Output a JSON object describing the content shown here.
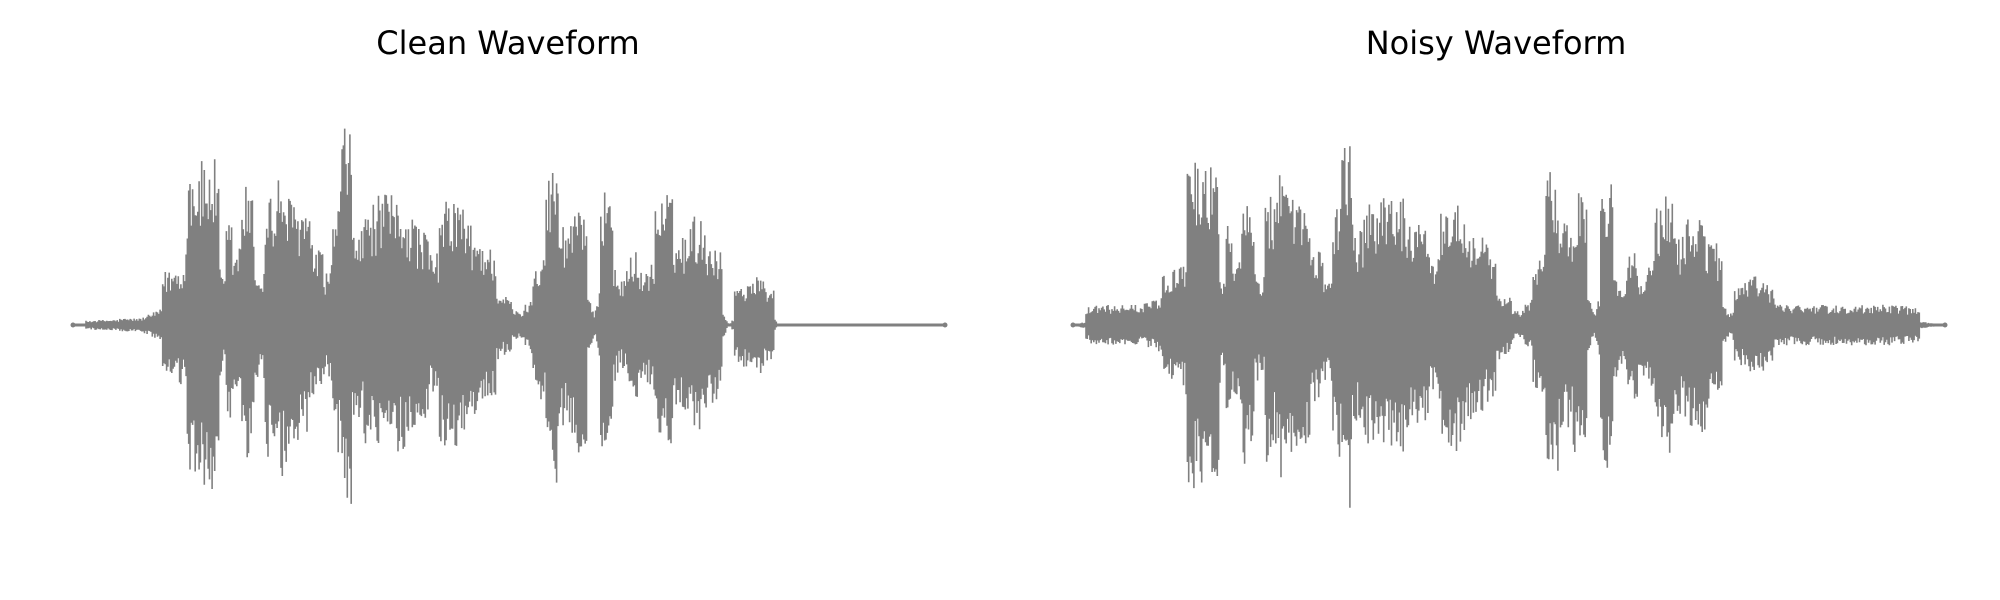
{
  "chart_data": [
    {
      "type": "line",
      "title": "Clean Waveform",
      "axes_visible": false,
      "grid": false,
      "legend": "none",
      "color": "#808080",
      "xlim": [
        0,
        1
      ],
      "ylim": [
        -1,
        1
      ],
      "series": [
        {
          "x": [
            0.0,
            0.0275,
            0.0775,
            0.1275,
            0.1325,
            0.1425,
            0.1525,
            0.1625,
            0.1725,
            0.1775,
            0.1875,
            0.1975,
            0.2175,
            0.2225,
            0.2325,
            0.2375,
            0.2525,
            0.2625,
            0.2825,
            0.2925,
            0.3025,
            0.3125,
            0.3275,
            0.3375,
            0.3575,
            0.3775,
            0.3875,
            0.4025,
            0.4125,
            0.4275,
            0.4425,
            0.4525,
            0.4625,
            0.4775,
            0.4925,
            0.5125,
            0.5225,
            0.5325,
            0.5525,
            0.5625,
            0.5825,
            0.5975,
            0.6125,
            0.6275,
            0.6425,
            0.6525,
            0.6825,
            0.6925,
            0.7125,
            0.7375,
            0.7525,
            0.7625,
            0.7825,
            0.8025,
            0.8075,
            0.8375,
            0.9425,
            1.0
          ],
          "y": [
            0.0,
            0.03,
            0.04,
            0.37,
            0.97,
            0.96,
            0.97,
            0.98,
            0.25,
            0.63,
            0.44,
            0.84,
            0.27,
            0.82,
            0.71,
            0.9,
            0.74,
            0.72,
            0.44,
            0.31,
            0.74,
            1.2,
            0.55,
            0.71,
            0.77,
            0.75,
            0.66,
            0.58,
            0.4,
            0.73,
            0.76,
            0.61,
            0.53,
            0.47,
            0.18,
            0.08,
            0.13,
            0.4,
            0.96,
            0.6,
            0.8,
            0.06,
            0.93,
            0.25,
            0.45,
            0.31,
            0.79,
            0.52,
            0.65,
            0.49,
            0.0,
            0.24,
            0.29,
            0.23,
            0.01,
            0.0,
            0.0,
            0.0
          ]
        }
      ]
    },
    {
      "type": "line",
      "title": "Noisy Waveform",
      "axes_visible": false,
      "grid": false,
      "legend": "none",
      "color": "#808080",
      "xlim": [
        0,
        1
      ],
      "ylim": [
        -1,
        1
      ],
      "series": [
        {
          "x": [
            0.0,
            0.0275,
            0.0775,
            0.1275,
            0.1325,
            0.1425,
            0.1525,
            0.1625,
            0.1725,
            0.1775,
            0.1875,
            0.1975,
            0.2175,
            0.2225,
            0.2325,
            0.2375,
            0.2525,
            0.2625,
            0.2825,
            0.2925,
            0.3025,
            0.3125,
            0.3275,
            0.3375,
            0.3575,
            0.3775,
            0.3875,
            0.4025,
            0.4125,
            0.4275,
            0.4425,
            0.4525,
            0.4625,
            0.4775,
            0.4925,
            0.5125,
            0.5225,
            0.5325,
            0.5525,
            0.5625,
            0.5825,
            0.5975,
            0.6125,
            0.6275,
            0.6425,
            0.6525,
            0.6825,
            0.6925,
            0.7125,
            0.7375,
            0.7525,
            0.7625,
            0.7825,
            0.8025,
            0.8075,
            0.8375,
            0.9425,
            1.0
          ],
          "y": [
            0.0,
            0.12,
            0.12,
            0.37,
            0.97,
            0.96,
            0.97,
            0.98,
            0.25,
            0.63,
            0.44,
            0.84,
            0.27,
            0.82,
            0.71,
            0.9,
            0.74,
            0.72,
            0.44,
            0.31,
            0.74,
            1.2,
            0.55,
            0.71,
            0.77,
            0.75,
            0.66,
            0.58,
            0.4,
            0.73,
            0.76,
            0.61,
            0.53,
            0.47,
            0.18,
            0.08,
            0.13,
            0.4,
            0.96,
            0.6,
            0.8,
            0.06,
            0.93,
            0.25,
            0.45,
            0.31,
            0.79,
            0.52,
            0.65,
            0.49,
            0.06,
            0.24,
            0.29,
            0.23,
            0.12,
            0.12,
            0.12,
            0.0
          ]
        }
      ]
    }
  ]
}
